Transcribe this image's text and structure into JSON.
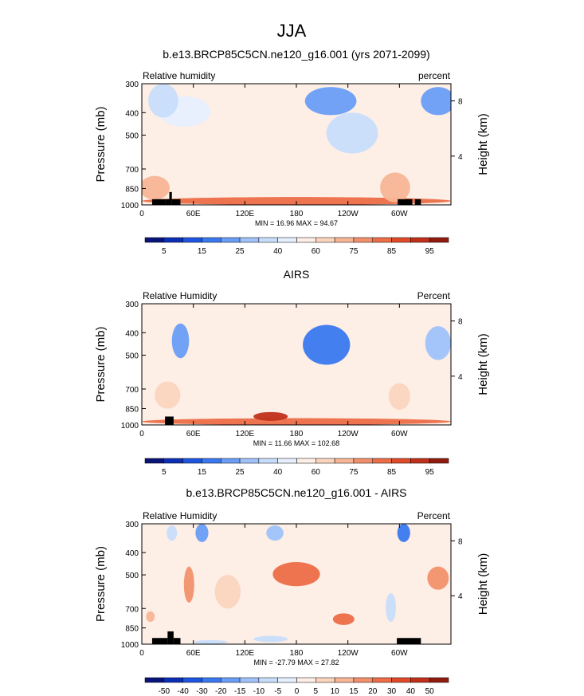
{
  "figure": {
    "main_title": "JJA",
    "colors": {
      "terrain": "#000000",
      "axis": "#000000"
    }
  },
  "chart_data": [
    {
      "type": "heatmap",
      "title": "b.e13.BRCP85C5CN.ne120_g16.001 (yrs 2071-2099)",
      "left_label": "Relative humidity",
      "right_label": "percent",
      "ylabel": "Pressure (mb)",
      "ylabel_right": "Height (km)",
      "x_ticks": [
        "0",
        "60E",
        "120E",
        "180",
        "120W",
        "60W"
      ],
      "x_tick_values": [
        0,
        60,
        120,
        180,
        240,
        300
      ],
      "xlim": [
        0,
        360
      ],
      "y_ticks": [
        "300",
        "400",
        "500",
        "700",
        "850",
        "1000"
      ],
      "y_tick_values": [
        300,
        400,
        500,
        700,
        850,
        1000
      ],
      "ylim": [
        1000,
        300
      ],
      "y_scale": "log",
      "height_ticks": [
        "8",
        "4"
      ],
      "height_tick_pressures": [
        356,
        616
      ],
      "stats": "MIN =  16.96  MAX =  94.67",
      "min": 16.96,
      "max": 94.67,
      "colorbar_labels": [
        "5",
        "15",
        "25",
        "40",
        "60",
        "75",
        "85",
        "95"
      ],
      "colorbar_colors": [
        "#0a1478",
        "#0c2fb5",
        "#1f55e0",
        "#3a78f0",
        "#6a9df5",
        "#9fc2fa",
        "#c8ddfc",
        "#e6effd",
        "#fdeee6",
        "#fbd4be",
        "#f7b595",
        "#f2906c",
        "#ec6d47",
        "#e04a28",
        "#c0301a",
        "#901c10"
      ],
      "colorbar_levels": [
        5,
        10,
        15,
        20,
        25,
        30,
        40,
        50,
        60,
        70,
        75,
        80,
        85,
        90,
        95
      ],
      "terrain": [
        {
          "lon": 12,
          "lon2": 27,
          "p": 945
        },
        {
          "lon": 27,
          "lon2": 32,
          "p": 945
        },
        {
          "lon": 32,
          "lon2": 35,
          "p": 880
        },
        {
          "lon": 35,
          "lon2": 45,
          "p": 945
        },
        {
          "lon": 298,
          "lon2": 315,
          "p": 945
        },
        {
          "lon": 318,
          "lon2": 325,
          "p": 945
        }
      ],
      "field_features": [
        {
          "lon": 0,
          "p": 1000,
          "dlon": 360,
          "dp": 150,
          "v": 80
        },
        {
          "lon": 15,
          "p": 850,
          "dlon": 35,
          "dp": 200,
          "v": 72
        },
        {
          "lon": 145,
          "p": 650,
          "dlon": 20,
          "dp": 350,
          "v": 58
        },
        {
          "lon": 295,
          "p": 850,
          "dlon": 35,
          "dp": 250,
          "v": 72
        },
        {
          "lon": 50,
          "p": 400,
          "dlon": 60,
          "dp": 120,
          "v": 42
        },
        {
          "lon": 220,
          "p": 360,
          "dlon": 60,
          "dp": 100,
          "v": 22
        },
        {
          "lon": 245,
          "p": 500,
          "dlon": 60,
          "dp": 200,
          "v": 38
        },
        {
          "lon": 345,
          "p": 360,
          "dlon": 40,
          "dp": 100,
          "v": 22
        },
        {
          "lon": 25,
          "p": 360,
          "dlon": 35,
          "dp": 120,
          "v": 32
        }
      ]
    },
    {
      "type": "heatmap",
      "title": "AIRS",
      "left_label": "Relative Humidity",
      "right_label": "Percent",
      "ylabel": "Pressure (mb)",
      "ylabel_right": "Height (km)",
      "x_ticks": [
        "0",
        "60E",
        "120E",
        "180",
        "120W",
        "60W"
      ],
      "x_tick_values": [
        0,
        60,
        120,
        180,
        240,
        300
      ],
      "xlim": [
        0,
        360
      ],
      "y_ticks": [
        "300",
        "400",
        "500",
        "700",
        "850",
        "1000"
      ],
      "y_tick_values": [
        300,
        400,
        500,
        700,
        850,
        1000
      ],
      "ylim": [
        1000,
        300
      ],
      "y_scale": "log",
      "height_ticks": [
        "8",
        "4"
      ],
      "height_tick_pressures": [
        356,
        616
      ],
      "stats": "MIN =  11.66  MAX = 102.68",
      "min": 11.66,
      "max": 102.68,
      "colorbar_labels": [
        "5",
        "15",
        "25",
        "40",
        "60",
        "75",
        "85",
        "95"
      ],
      "colorbar_colors": [
        "#0a1478",
        "#0c2fb5",
        "#1f55e0",
        "#3a78f0",
        "#6a9df5",
        "#9fc2fa",
        "#c8ddfc",
        "#e6effd",
        "#fdeee6",
        "#fbd4be",
        "#f7b595",
        "#f2906c",
        "#ec6d47",
        "#e04a28",
        "#c0301a",
        "#901c10"
      ],
      "colorbar_levels": [
        5,
        10,
        15,
        20,
        25,
        30,
        40,
        50,
        60,
        70,
        75,
        80,
        85,
        90,
        95
      ],
      "terrain": [
        {
          "lon": 27,
          "lon2": 37,
          "p": 920
        }
      ],
      "field_features": [
        {
          "lon": 0,
          "p": 1000,
          "dlon": 360,
          "dp": 130,
          "v": 82
        },
        {
          "lon": 150,
          "p": 920,
          "dlon": 40,
          "dp": 80,
          "v": 92
        },
        {
          "lon": 45,
          "p": 440,
          "dlon": 20,
          "dp": 150,
          "v": 20
        },
        {
          "lon": 215,
          "p": 460,
          "dlon": 55,
          "dp": 180,
          "v": 15
        },
        {
          "lon": 345,
          "p": 450,
          "dlon": 30,
          "dp": 150,
          "v": 25
        },
        {
          "lon": 30,
          "p": 750,
          "dlon": 30,
          "dp": 200,
          "v": 62
        },
        {
          "lon": 300,
          "p": 760,
          "dlon": 25,
          "dp": 200,
          "v": 60
        }
      ]
    },
    {
      "type": "heatmap",
      "title": "b.e13.BRCP85C5CN.ne120_g16.001 - AIRS",
      "left_label": "Relative Humidity",
      "right_label": "Percent",
      "ylabel": "Pressure (mb)",
      "ylabel_right": "Height (km)",
      "x_ticks": [
        "0",
        "60E",
        "120E",
        "180",
        "120W",
        "60W"
      ],
      "x_tick_values": [
        0,
        60,
        120,
        180,
        240,
        300
      ],
      "xlim": [
        0,
        360
      ],
      "y_ticks": [
        "300",
        "400",
        "500",
        "700",
        "850",
        "1000"
      ],
      "y_tick_values": [
        300,
        400,
        500,
        700,
        850,
        1000
      ],
      "ylim": [
        1000,
        300
      ],
      "y_scale": "log",
      "height_ticks": [
        "8",
        "4"
      ],
      "height_tick_pressures": [
        356,
        616
      ],
      "stats": "MIN = -27.79  MAX =  27.82",
      "min": -27.79,
      "max": 27.82,
      "colorbar_labels": [
        "-50",
        "-40",
        "-30",
        "-20",
        "-15",
        "-10",
        "-5",
        "0",
        "5",
        "10",
        "15",
        "20",
        "30",
        "40",
        "50"
      ],
      "colorbar_colors": [
        "#0a1478",
        "#0c2fb5",
        "#1f55e0",
        "#3a78f0",
        "#6a9df5",
        "#9fc2fa",
        "#c8ddfc",
        "#e6effd",
        "#fdeee6",
        "#fbd4be",
        "#f7b595",
        "#f2906c",
        "#ec6d47",
        "#e04a28",
        "#c0301a",
        "#901c10"
      ],
      "colorbar_levels": [
        -50,
        -40,
        -30,
        -20,
        -15,
        -10,
        -5,
        0,
        5,
        10,
        15,
        20,
        30,
        40,
        50
      ],
      "terrain": [
        {
          "lon": 12,
          "lon2": 30,
          "p": 940
        },
        {
          "lon": 30,
          "lon2": 37,
          "p": 880
        },
        {
          "lon": 37,
          "lon2": 45,
          "p": 940
        },
        {
          "lon": 297,
          "lon2": 325,
          "p": 940
        }
      ],
      "field_features": [
        {
          "lon": 180,
          "p": 500,
          "dlon": 55,
          "dp": 120,
          "v": 20
        },
        {
          "lon": 235,
          "p": 780,
          "dlon": 25,
          "dp": 90,
          "v": 20
        },
        {
          "lon": 55,
          "p": 560,
          "dlon": 12,
          "dp": 200,
          "v": 18
        },
        {
          "lon": 10,
          "p": 760,
          "dlon": 10,
          "dp": 80,
          "v": 14
        },
        {
          "lon": 345,
          "p": 520,
          "dlon": 25,
          "dp": 120,
          "v": 15
        },
        {
          "lon": 100,
          "p": 600,
          "dlon": 30,
          "dp": 200,
          "v": 6
        },
        {
          "lon": 70,
          "p": 330,
          "dlon": 15,
          "dp": 60,
          "v": -18
        },
        {
          "lon": 155,
          "p": 330,
          "dlon": 20,
          "dp": 50,
          "v": -15
        },
        {
          "lon": 305,
          "p": 330,
          "dlon": 15,
          "dp": 60,
          "v": -22
        },
        {
          "lon": 35,
          "p": 330,
          "dlon": 12,
          "dp": 50,
          "v": -8
        },
        {
          "lon": 290,
          "p": 700,
          "dlon": 12,
          "dp": 200,
          "v": -8
        },
        {
          "lon": 150,
          "p": 950,
          "dlon": 40,
          "dp": 60,
          "v": -9
        },
        {
          "lon": 80,
          "p": 980,
          "dlon": 40,
          "dp": 40,
          "v": -6
        }
      ]
    }
  ]
}
